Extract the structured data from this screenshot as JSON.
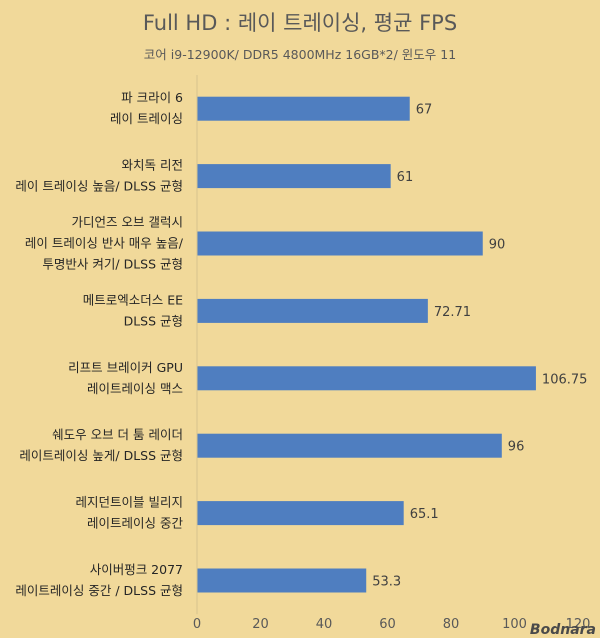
{
  "chart_data": {
    "type": "bar",
    "orientation": "horizontal",
    "title": "Full HD : 레이 트레이싱, 평균 FPS",
    "subtitle": "코어 i9-12900K/ DDR5 4800MHz 16GB*2/ 윈도우 11",
    "categories": [
      [
        "파 크라이 6",
        "레이 트레이싱"
      ],
      [
        "와치독 리전",
        "레이 트레이싱 높음/ DLSS 균형"
      ],
      [
        "가디언즈 오브 갤럭시",
        "레이 트레이싱 반사 매우 높음/",
        "투명반사 켜기/ DLSS 균형"
      ],
      [
        "메트로엑소더스 EE",
        "DLSS 균형"
      ],
      [
        "리프트 브레이커 GPU",
        "레이트레이싱 맥스"
      ],
      [
        "쉐도우 오브 더 툼 레이더",
        "레이트레이싱 높게/ DLSS 균형"
      ],
      [
        "레지던트이블 빌리지",
        "레이트레이싱 중간"
      ],
      [
        "사이버펑크 2077",
        "레이트레이싱 중간 / DLSS 균형"
      ]
    ],
    "values": [
      67,
      61,
      90,
      72.71,
      106.75,
      96,
      65.1,
      53.3
    ],
    "value_labels": [
      "67",
      "61",
      "90",
      "72.71",
      "106.75",
      "96",
      "65.1",
      "53.3"
    ],
    "xlim": [
      0,
      120
    ],
    "x_ticks": [
      "0",
      "20",
      "40",
      "60",
      "80",
      "100",
      "120"
    ],
    "grid": false,
    "bar_color": "#4f7ec0",
    "background_color": "#f1d99a"
  },
  "watermark": "Bodnara"
}
